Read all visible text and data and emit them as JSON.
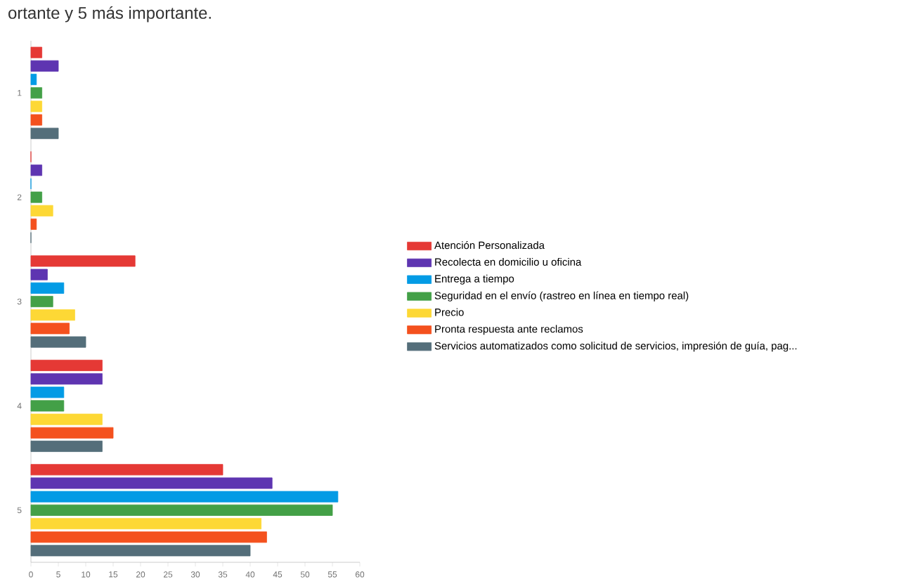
{
  "chart_data": {
    "type": "bar",
    "orientation": "horizontal",
    "title": "ortante y 5 más importante.",
    "categories": [
      "1",
      "2",
      "3",
      "4",
      "5"
    ],
    "series": [
      {
        "name": "Atención Personalizada",
        "color": "#e53935",
        "values": [
          2,
          0,
          19,
          13,
          35
        ]
      },
      {
        "name": "Recolecta en domicilio u oficina",
        "color": "#5e35b1",
        "values": [
          5,
          2,
          3,
          13,
          44
        ]
      },
      {
        "name": "Entrega a tiempo",
        "color": "#039be5",
        "values": [
          1,
          0,
          6,
          6,
          56
        ]
      },
      {
        "name": "Seguridad en el envío (rastreo en línea en tiempo real)",
        "color": "#43a047",
        "values": [
          2,
          2,
          4,
          6,
          55
        ]
      },
      {
        "name": "Precio",
        "color": "#fdd835",
        "values": [
          2,
          4,
          8,
          13,
          42
        ]
      },
      {
        "name": "Pronta respuesta ante reclamos",
        "color": "#f4511e",
        "values": [
          2,
          1,
          7,
          15,
          43
        ]
      },
      {
        "name": "Servicios automatizados como solicitud de servicios, impresión de guía, pag...",
        "color": "#546e7a",
        "values": [
          5,
          0,
          10,
          13,
          40
        ]
      }
    ],
    "xlim": [
      0,
      60
    ],
    "xticks": [
      0,
      5,
      10,
      15,
      20,
      25,
      30,
      35,
      40,
      45,
      50,
      55,
      60
    ],
    "legend": "right"
  }
}
